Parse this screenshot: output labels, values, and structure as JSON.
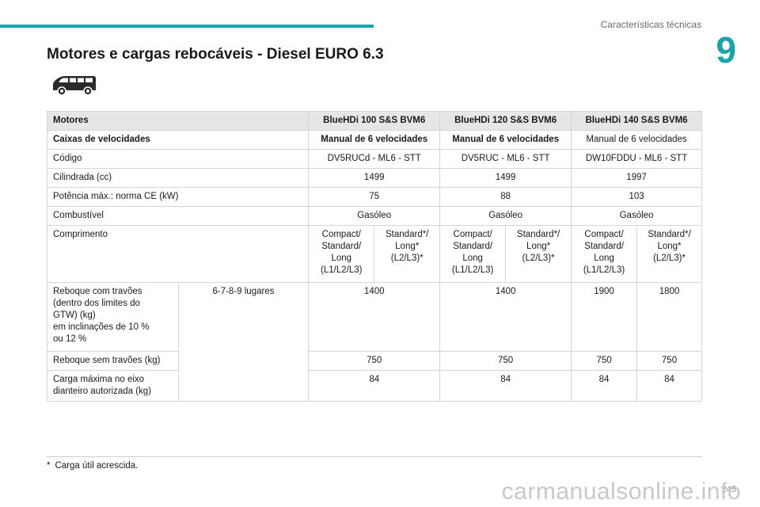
{
  "header": {
    "chapter_title": "Características técnicas",
    "chapter_number": "9",
    "accent_color": "#1aa3a8"
  },
  "section": {
    "title": "Motores e cargas rebocáveis - Diesel EURO 6.3",
    "icon": "van-icon"
  },
  "table": {
    "headers": {
      "motores": "Motores",
      "engine1": "BlueHDi 100 S&S BVM6",
      "engine2": "BlueHDi 120 S&S BVM6",
      "engine3": "BlueHDi 140 S&S BVM6"
    },
    "gearbox": {
      "label": "Caixas de velocidades",
      "v1": "Manual de 6 velocidades",
      "v2": "Manual de 6 velocidades",
      "v3": "Manual de 6 velocidades"
    },
    "code": {
      "label": "Código",
      "v1": "DV5RUCd - ML6 - STT",
      "v2": "DV5RUC - ML6 - STT",
      "v3": "DW10FDDU - ML6 - STT"
    },
    "displacement": {
      "label": "Cilindrada (cc)",
      "v1": "1499",
      "v2": "1499",
      "v3": "1997"
    },
    "power": {
      "label": "Potência máx.: norma CE (kW)",
      "v1": "75",
      "v2": "88",
      "v3": "103"
    },
    "fuel": {
      "label": "Combustível",
      "v1": "Gasóleo",
      "v2": "Gasóleo",
      "v3": "Gasóleo"
    },
    "length": {
      "label": "Comprimento",
      "a_line1": "Compact/",
      "a_line2": "Standard/",
      "a_line3": "Long",
      "a_line4": "(L1/L2/L3)",
      "b_line1": "Standard*/",
      "b_line2": "Long*",
      "b_line3": "(L2/L3)*"
    },
    "braked": {
      "label_line1": "Reboque com travões",
      "label_line2": "(dentro dos limites do",
      "label_line3": "GTW) (kg)",
      "label_line4": "em inclinações de 10 %",
      "label_line5": "ou 12 %",
      "seats": "6-7-8-9 lugares",
      "v1": "1400",
      "v2": "1400",
      "v3a": "1900",
      "v3b": "1800"
    },
    "unbraked": {
      "label": "Reboque sem travões (kg)",
      "v1": "750",
      "v2": "750",
      "v3a": "750",
      "v3b": "750"
    },
    "front_axle": {
      "label_line1": "Carga máxima no eixo",
      "label_line2": "dianteiro autorizada (kg)",
      "v1": "84",
      "v2": "84",
      "v3a": "84",
      "v3b": "84"
    }
  },
  "footnote": {
    "mark": "*",
    "text": "Carga útil acrescida."
  },
  "page_number": "245",
  "watermark": "carmanualsonline.info"
}
